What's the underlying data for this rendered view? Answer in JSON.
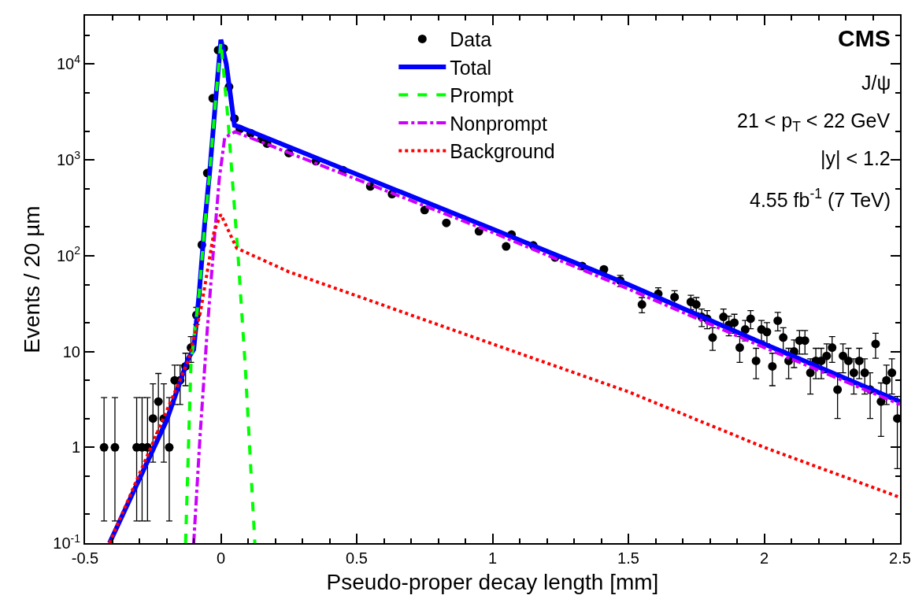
{
  "chart_data": {
    "type": "scatter",
    "xlabel": "Pseudo-proper decay length [mm]",
    "ylabel": "Events / 20 µm",
    "xlim": [
      -0.5,
      2.5
    ],
    "xticks": [
      -0.5,
      0,
      0.5,
      1,
      1.5,
      2,
      2.5
    ],
    "ylim": [
      0.1,
      32000
    ],
    "yticks": [
      {
        "value": 0.1,
        "label": "10$^{-1}$"
      },
      1,
      10,
      {
        "value": 100,
        "label": "10$^{2}$"
      },
      {
        "value": 1000,
        "label": "10$^{3}$"
      },
      {
        "value": 10000,
        "label": "10$^{4}$"
      }
    ],
    "log": "y",
    "legend": "top",
    "annotations": [
      "CMS",
      "J/ψ",
      "21 < p$_{T}$ < 22 GeV",
      "|y| < 1.2",
      "4.55 fb$^{-1}$ (7 TeV)"
    ],
    "series": [
      {
        "name": "Data",
        "color": "#000000",
        "marker": "circle",
        "x": [
          -0.43,
          -0.39,
          -0.31,
          -0.29,
          -0.27,
          -0.25,
          -0.23,
          -0.21,
          -0.19,
          -0.17,
          -0.15,
          -0.13,
          -0.11,
          -0.09,
          -0.07,
          -0.05,
          -0.03,
          -0.01,
          0.01,
          0.03,
          0.05,
          0.07,
          0.11,
          0.15,
          0.17,
          0.25,
          0.35,
          0.45,
          0.55,
          0.63,
          0.75,
          0.83,
          0.95,
          1.05,
          1.07,
          1.15,
          1.23,
          1.33,
          1.41,
          1.47,
          1.55,
          1.61,
          1.67,
          1.73,
          1.75,
          1.77,
          1.79,
          1.81,
          1.85,
          1.87,
          1.89,
          1.91,
          1.93,
          1.95,
          1.97,
          1.99,
          2.01,
          2.03,
          2.05,
          2.07,
          2.09,
          2.11,
          2.13,
          2.15,
          2.17,
          2.19,
          2.21,
          2.23,
          2.25,
          2.27,
          2.29,
          2.31,
          2.33,
          2.35,
          2.37,
          2.39,
          2.41,
          2.43,
          2.45,
          2.47,
          2.49
        ],
        "values": [
          1,
          1,
          1,
          1,
          1,
          2,
          3,
          2,
          1,
          5,
          5,
          7,
          11,
          24,
          130,
          730,
          4400,
          14000,
          14600,
          5800,
          2700,
          2100,
          1900,
          1650,
          1480,
          1180,
          970,
          780,
          530,
          440,
          300,
          220,
          180,
          125,
          166,
          128,
          96,
          78,
          72,
          55,
          31,
          40,
          37,
          33,
          31,
          23,
          22,
          14,
          23,
          19,
          20,
          11,
          17,
          22,
          8,
          17,
          16,
          7,
          21,
          14,
          8,
          10,
          13,
          13,
          6,
          8,
          8,
          9,
          11,
          4,
          9,
          8,
          6,
          8,
          6,
          4,
          12,
          3,
          5,
          6,
          2
        ],
        "errors": [
          [
            0.17,
            3.3
          ],
          [
            0.17,
            3.3
          ],
          [
            0.17,
            3.3
          ],
          [
            0.17,
            3.3
          ],
          [
            0.17,
            3.3
          ],
          [
            0.7,
            4.6
          ],
          [
            1.4,
            5.9
          ],
          [
            0.7,
            4.6
          ],
          [
            0.17,
            3.3
          ],
          2.2,
          2.2,
          2.6,
          3.3,
          4.9,
          null,
          null,
          null,
          null,
          null,
          null,
          null,
          null,
          null,
          null,
          null,
          null,
          null,
          null,
          null,
          null,
          null,
          null,
          null,
          null,
          null,
          null,
          null,
          null,
          null,
          7.4,
          5.6,
          6.3,
          6.1,
          5.7,
          5.6,
          4.8,
          4.7,
          3.7,
          4.8,
          4.4,
          4.5,
          3.3,
          4.1,
          4.7,
          2.8,
          4.1,
          4,
          2.6,
          4.6,
          3.7,
          2.8,
          3.2,
          3.6,
          3.6,
          2.4,
          2.8,
          2.8,
          3,
          3.3,
          2,
          3,
          2.8,
          2.4,
          2.8,
          2.4,
          2,
          3.5,
          1.7,
          2.2,
          2.4,
          1.4
        ]
      },
      {
        "name": "Total",
        "type": "line",
        "color": "#0000ff",
        "line_style": "solid",
        "x": [
          -0.41,
          -0.2,
          -0.12,
          -0.1,
          -0.08,
          -0.06,
          -0.04,
          -0.02,
          0,
          0.02,
          0.05,
          0.07,
          1.0,
          1.5,
          2.0,
          2.5
        ],
        "values": [
          0.1,
          1.9,
          8.5,
          10.5,
          40,
          210,
          820,
          4000,
          18000,
          10000,
          2300,
          2200,
          190,
          50,
          12,
          3.0
        ]
      },
      {
        "name": "Prompt",
        "type": "line",
        "color": "#00ff00",
        "line_style": "dashed",
        "x": [
          -0.13,
          -0.11,
          -0.08,
          -0.06,
          -0.04,
          -0.02,
          0,
          0.026,
          0.045,
          0.064,
          0.089,
          0.125
        ],
        "values": [
          0.1,
          7.5,
          40,
          200,
          800,
          4000,
          17000,
          2700,
          490,
          93,
          7.6,
          0.1
        ]
      },
      {
        "name": "Nonprompt",
        "type": "line",
        "color": "#cc00ff",
        "line_style": "dashdot",
        "x": [
          -0.1,
          -0.076,
          -0.05,
          -0.025,
          -0.006,
          0.014,
          0.052,
          1.0,
          1.5,
          2.0,
          2.5
        ],
        "values": [
          0.1,
          1.4,
          17,
          140,
          630,
          1700,
          1970,
          175,
          45,
          11,
          2.8
        ]
      },
      {
        "name": "Background",
        "type": "line",
        "color": "#ff0000",
        "line_style": "dotted",
        "x": [
          -0.41,
          -0.12,
          -0.075,
          -0.025,
          0,
          0.058,
          0.25,
          1.0,
          1.5,
          2.0,
          2.5
        ],
        "values": [
          0.1,
          8,
          26,
          180,
          270,
          120,
          68,
          12,
          3.8,
          1.0,
          0.3
        ]
      }
    ]
  }
}
